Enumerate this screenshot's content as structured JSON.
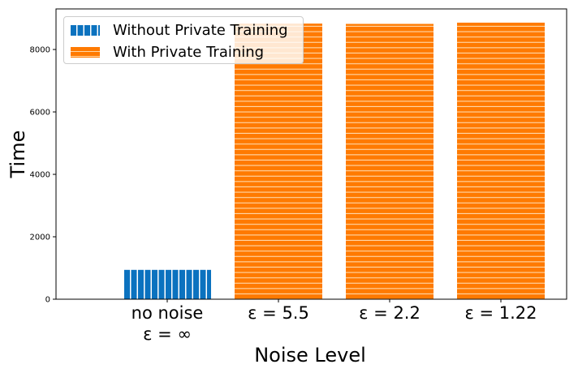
{
  "chart_data": {
    "type": "bar",
    "categories": [
      "no noise\nε = ∞",
      "ε = 5.5",
      "ε = 2.2",
      "ε = 1.22"
    ],
    "category_lines": [
      [
        "no noise",
        "ε = ∞"
      ],
      [
        "ε = 5.5"
      ],
      [
        "ε = 2.2"
      ],
      [
        "ε = 1.22"
      ]
    ],
    "series": [
      {
        "name": "Without Private Training",
        "values": [
          940,
          null,
          null,
          null
        ],
        "color": "#0b72bf",
        "hatch": "vertical"
      },
      {
        "name": "With Private Training",
        "values": [
          null,
          8830,
          8820,
          8860
        ],
        "color": "#ff7a00",
        "hatch": "horizontal"
      }
    ],
    "xlabel": "Noise Level",
    "ylabel": "Time",
    "ylim": [
      0,
      9300
    ],
    "yticks": [
      0,
      2000,
      4000,
      6000,
      8000
    ],
    "ytick_labels": [
      "0",
      "2000",
      "4000",
      "6000",
      "8000"
    ],
    "legend": "top-left",
    "grid": false
  }
}
